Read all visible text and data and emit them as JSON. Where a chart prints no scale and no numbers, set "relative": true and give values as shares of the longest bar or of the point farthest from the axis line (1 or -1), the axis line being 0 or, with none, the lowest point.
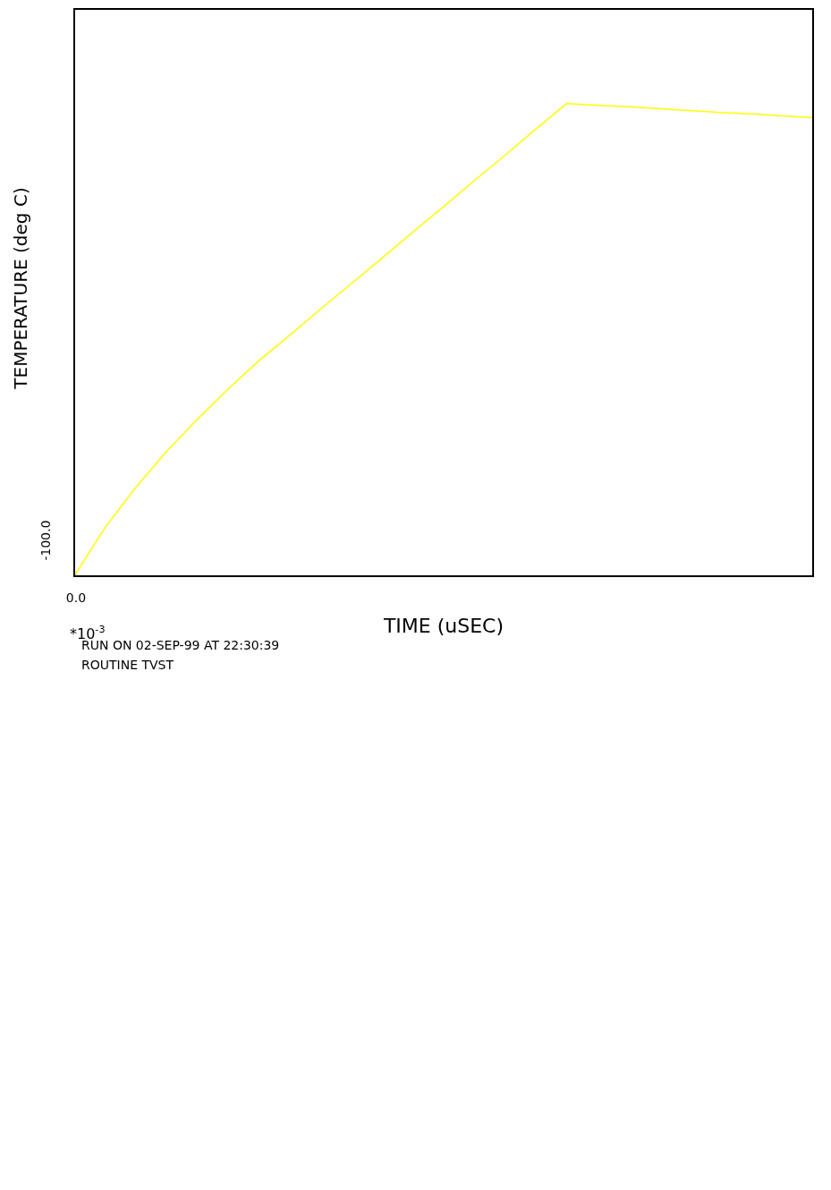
{
  "chart_data": {
    "type": "line",
    "xlabel": "TIME (uSEC)",
    "ylabel": "TEMPERATURE (deg C)",
    "annotations": [
      "0.0",
      "-100.0",
      "*10$^{-3}$",
      "RUN ON 02-SEP-99 AT 22:30:39",
      "ROUTINE TVST"
    ],
    "categories": [
      null,
      null,
      null,
      null,
      null,
      null,
      null,
      null,
      null,
      null,
      null,
      null,
      null,
      null,
      null,
      null,
      null,
      null,
      null,
      null,
      null,
      null,
      null,
      null,
      null
    ],
    "series": [
      {
        "color": "#ffff00",
        "values": [
          0,
          0.103,
          0.188,
          0.264,
          0.332,
          0.396,
          0.456,
          0.51,
          0.565,
          0.619,
          0.673,
          0.728,
          0.782,
          0.837,
          0.891,
          0.946,
          1,
          0.996,
          0.993,
          0.989,
          0.985,
          0.981,
          0.978,
          0.974,
          0.97
        ]
      }
    ],
    "relative": true,
    "marker": "none",
    "grid": false,
    "legend": false
  }
}
